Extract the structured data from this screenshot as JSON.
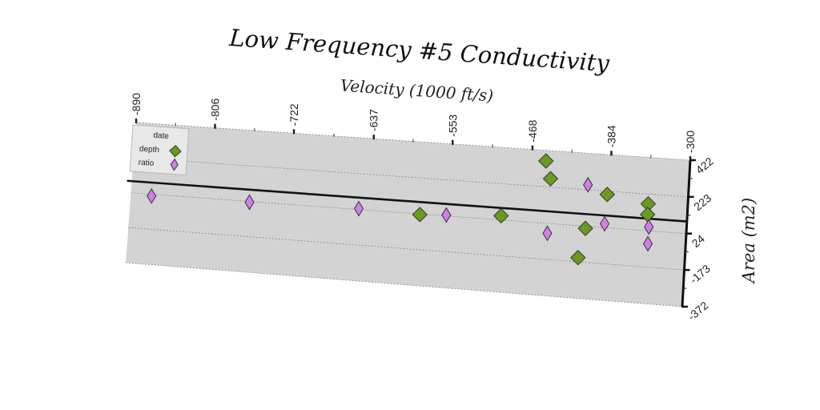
{
  "chart_data": {
    "type": "scatter",
    "title": "Low Frequency #5 Conductivity",
    "xlabel": "Velocity (1000 ft/s)",
    "ylabel": "Area (m2)",
    "x_axis_position": "top",
    "y_axis_position": "right",
    "xlim": [
      -890,
      -300
    ],
    "ylim": [
      -372,
      422
    ],
    "x_ticks": [
      "-890",
      "-806",
      "-722",
      "-637",
      "-553",
      "-468",
      "-384",
      "-300"
    ],
    "y_ticks": [
      "-372",
      "-173",
      "24",
      "223",
      "422"
    ],
    "legend_title": "date",
    "legend_position": "top-left",
    "grid": true,
    "reference_line_y": 90,
    "series": [
      {
        "name": "depth",
        "color": "#6a9a1f",
        "marker": "diamond",
        "points": [
          {
            "x": -453,
            "y": 364
          },
          {
            "x": -447,
            "y": 269
          },
          {
            "x": -407,
            "y": 12
          },
          {
            "x": -497,
            "y": 47
          },
          {
            "x": -583,
            "y": 21
          },
          {
            "x": -386,
            "y": 205
          },
          {
            "x": -342,
            "y": 170
          },
          {
            "x": -342,
            "y": 112
          },
          {
            "x": -413,
            "y": -150
          }
        ]
      },
      {
        "name": "ratio",
        "color": "#d17fe6",
        "marker": "diamond",
        "points": [
          {
            "x": -868,
            "y": 14
          },
          {
            "x": -764,
            "y": 20
          },
          {
            "x": -648,
            "y": 29
          },
          {
            "x": -555,
            "y": 29
          },
          {
            "x": -407,
            "y": 250
          },
          {
            "x": -387,
            "y": 45
          },
          {
            "x": -340,
            "y": 45
          },
          {
            "x": -447,
            "y": -30
          },
          {
            "x": -340,
            "y": -46
          }
        ]
      }
    ]
  }
}
